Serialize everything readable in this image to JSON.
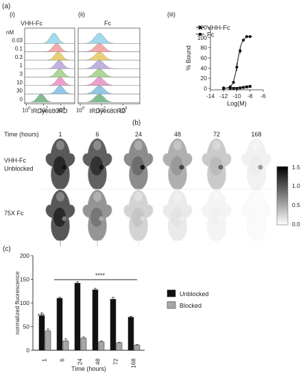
{
  "panel_a": {
    "label": "(a)",
    "sub_i": "(i)",
    "sub_ii": "(ii)",
    "sub_iii": "(iii)",
    "title_i": "VHH-Fc",
    "title_ii": "Fc",
    "nm_label": "nM",
    "xlabel": "IRDye680RD",
    "x_ticks": [
      "10^0",
      "10^2",
      "10^4"
    ]
  },
  "panel_b": {
    "label": "(b)",
    "time_label": "Time (hours)",
    "row1": "VHH-Fc Unblocked",
    "row1_lines": [
      "VHH-Fc",
      "Unblocked"
    ],
    "row2": "75X Fc",
    "colorbar": {
      "ticks": [
        "1.5",
        "1.0",
        "0.5",
        "0.0"
      ]
    }
  },
  "panel_c": {
    "label": "(c)",
    "sig_1": "***",
    "sig_rest": "****"
  },
  "colors": {
    "unblocked": "#111111",
    "blocked": "#a6a6a6",
    "histogram": [
      "#8fd3e8",
      "#f29b9b",
      "#e6c85a",
      "#b5a3d9",
      "#9fcf87",
      "#e88fc2",
      "#7fbde0",
      "#6fb07f"
    ]
  },
  "chart_data": [
    {
      "type": "area",
      "panel": "(a)(i)",
      "title": "VHH-Fc",
      "xlabel": "IRDye680RD",
      "xscale": "log",
      "rows": [
        "nM",
        "0.03",
        "0.1",
        "0.3",
        "1",
        "3",
        "10",
        "30",
        "0"
      ],
      "row_labels": [
        "0.03",
        "0.1",
        "0.3",
        "1",
        "3",
        "10",
        "30",
        "0"
      ],
      "peak_log10": [
        3.2,
        3.5,
        3.7,
        3.8,
        3.85,
        3.9,
        3.9,
        1.7
      ]
    },
    {
      "type": "area",
      "panel": "(a)(ii)",
      "title": "Fc",
      "xlabel": "IRDye680RD",
      "xscale": "log",
      "peak_log10": [
        1.8,
        1.8,
        1.8,
        1.8,
        1.8,
        1.8,
        1.8,
        1.8
      ]
    },
    {
      "type": "scatter",
      "panel": "(a)(iii)",
      "xlabel": "Log(M)",
      "ylabel": "% Bound",
      "xlim": [
        -14,
        -6
      ],
      "ylim": [
        0,
        120
      ],
      "x_ticks": [
        "-14",
        "-12",
        "-10",
        "-8",
        "-6"
      ],
      "y_ticks": [
        "0",
        "20",
        "40",
        "60",
        "80",
        "100",
        "120"
      ],
      "legend": [
        "VHH-Fc",
        "Fc"
      ],
      "series": [
        {
          "name": "VHH-Fc",
          "x": [
            -12,
            -11,
            -10.5,
            -10,
            -9.5,
            -9,
            -8.5,
            -8
          ],
          "y": [
            1,
            3,
            12,
            42,
            74,
            95,
            102,
            102
          ]
        },
        {
          "name": "Fc",
          "x": [
            -12,
            -11,
            -10.5,
            -10,
            -9.5,
            -9,
            -8.5,
            -8
          ],
          "y": [
            0,
            0,
            0,
            0,
            1,
            2,
            3,
            4
          ]
        }
      ]
    },
    {
      "type": "bar",
      "panel": "(c)",
      "xlabel": "Time (hours)",
      "ylabel": "normalized fluorescence",
      "ylim": [
        0,
        200
      ],
      "y_ticks": [
        "0",
        "50",
        "100",
        "150",
        "200"
      ],
      "categories": [
        "1",
        "6",
        "24",
        "48",
        "72",
        "168"
      ],
      "legend": [
        "Unblocked",
        "Blocked"
      ],
      "series": [
        {
          "name": "Unblocked",
          "values": [
            73,
            110,
            142,
            128,
            108,
            70
          ],
          "errors": [
            6,
            2,
            3,
            3,
            4,
            2
          ]
        },
        {
          "name": "Blocked",
          "values": [
            41,
            20,
            26,
            18,
            16,
            11
          ],
          "errors": [
            4,
            4,
            2,
            2,
            1,
            1
          ]
        }
      ]
    }
  ],
  "imaging": {
    "times": [
      "1",
      "6",
      "24",
      "48",
      "72",
      "168"
    ],
    "unblocked_intensity": [
      0.95,
      0.9,
      0.65,
      0.45,
      0.3,
      0.08
    ],
    "blocked_intensity": [
      0.95,
      0.6,
      0.25,
      0.12,
      0.06,
      0.03
    ]
  }
}
